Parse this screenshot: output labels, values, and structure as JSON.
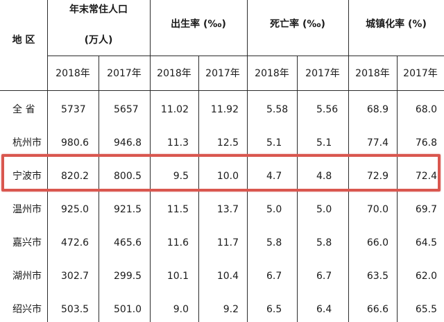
{
  "header": {
    "region": "地 区",
    "population_line1": "年末常住人口",
    "population_line2": "(万人)",
    "birth_rate": "出生率 (‰)",
    "death_rate": "死亡率 (‰)",
    "urbanization": "城镇化率 (%)",
    "years": [
      "2018年",
      "2017年",
      "2018年",
      "2017年",
      "2018年",
      "2017年",
      "2018年",
      "2017年"
    ]
  },
  "rows": [
    {
      "name": "全 省",
      "values": [
        "5737",
        "5657",
        "11.02",
        "11.92",
        "5.58",
        "5.56",
        "68.9",
        "68.0"
      ]
    },
    {
      "name": "杭州市",
      "values": [
        "980.6",
        "946.8",
        "11.3",
        "12.5",
        "5.1",
        "5.1",
        "77.4",
        "76.8"
      ]
    },
    {
      "name": "宁波市",
      "values": [
        "820.2",
        "800.5",
        "9.5",
        "10.0",
        "4.7",
        "4.8",
        "72.9",
        "72.4"
      ]
    },
    {
      "name": "温州市",
      "values": [
        "925.0",
        "921.5",
        "11.5",
        "13.7",
        "5.0",
        "5.0",
        "70.0",
        "69.7"
      ]
    },
    {
      "name": "嘉兴市",
      "values": [
        "472.6",
        "465.6",
        "11.6",
        "11.7",
        "5.8",
        "5.8",
        "66.0",
        "64.5"
      ]
    },
    {
      "name": "湖州市",
      "values": [
        "302.7",
        "299.5",
        "10.1",
        "10.4",
        "6.7",
        "6.7",
        "63.5",
        "62.0"
      ]
    },
    {
      "name": "绍兴市",
      "values": [
        "503.5",
        "501.0",
        "9.0",
        "9.2",
        "6.5",
        "6.4",
        "66.6",
        "65.5"
      ]
    }
  ],
  "highlight_color": "#d9574f"
}
